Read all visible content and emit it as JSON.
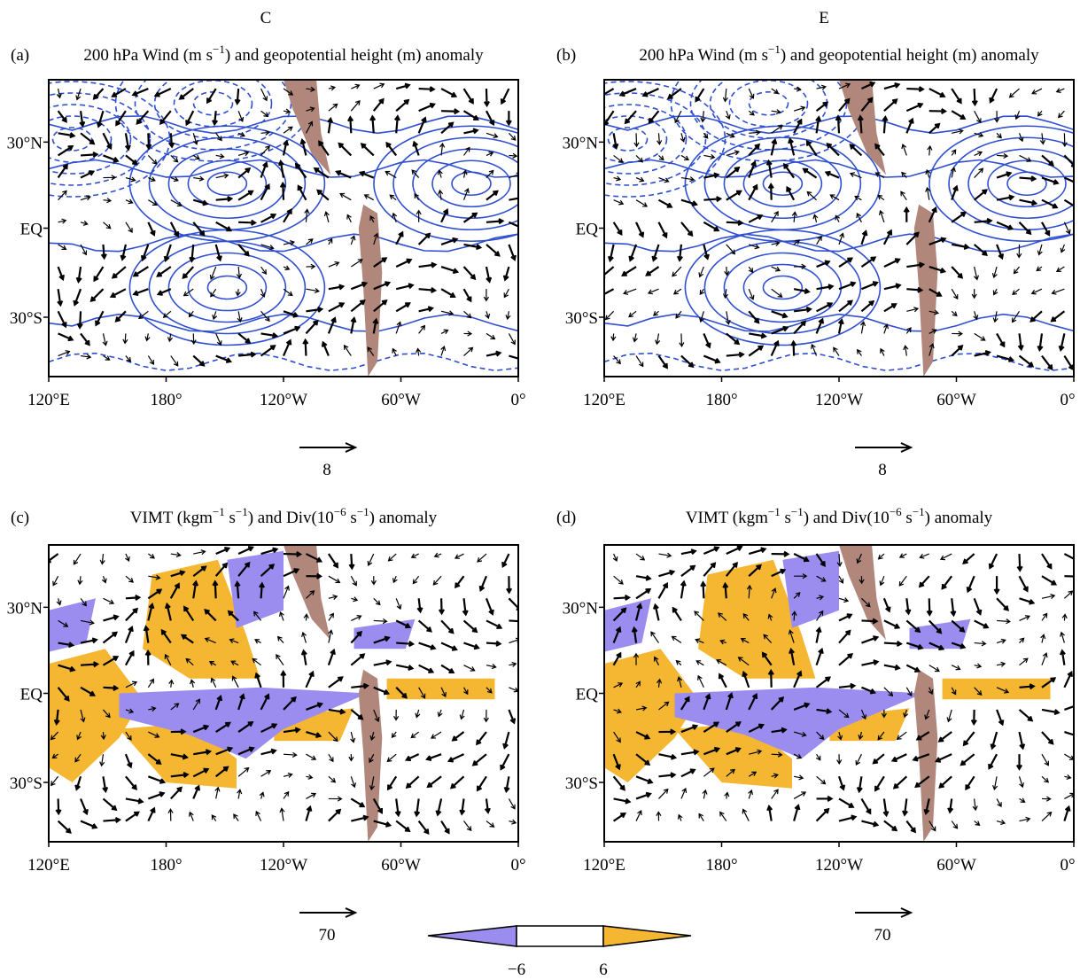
{
  "column_titles": [
    "C",
    "E"
  ],
  "panels": [
    {
      "label": "(a)",
      "title": [
        "200 hPa Wind (m s",
        "−1",
        ") and geopotential height (m) anomaly"
      ],
      "y_ticks": [
        "30°N",
        "EQ",
        "30°S"
      ],
      "x_ticks": [
        "120°E",
        "180°",
        "120°W",
        "60°W",
        "0°"
      ],
      "reference_vector": "8"
    },
    {
      "label": "(b)",
      "title": [
        "200 hPa Wind (m s",
        "−1",
        ") and geopotential height (m) anomaly"
      ],
      "y_ticks": [
        "30°N",
        "EQ",
        "30°S"
      ],
      "x_ticks": [
        "120°E",
        "180°",
        "120°W",
        "60°W",
        "0°"
      ],
      "reference_vector": "8"
    },
    {
      "label": "(c)",
      "title": [
        "VIMT (kgm",
        "−1",
        " s",
        "−1",
        ") and Div(10",
        "−6",
        " s",
        "−1",
        ") anomaly"
      ],
      "y_ticks": [
        "30°N",
        "EQ",
        "30°S"
      ],
      "x_ticks": [
        "120°E",
        "180°",
        "120°W",
        "60°W",
        "0°"
      ],
      "reference_vector": "70"
    },
    {
      "label": "(d)",
      "title": [
        "VIMT (kgm",
        "−1",
        " s",
        "−1",
        ") and Div(10",
        "−6",
        " s",
        "−1",
        ") anomaly"
      ],
      "y_ticks": [
        "30°N",
        "EQ",
        "30°S"
      ],
      "x_ticks": [
        "120°E",
        "180°",
        "120°W",
        "60°W",
        "0°"
      ],
      "reference_vector": "70"
    }
  ],
  "colorbar": {
    "labels": [
      "−6",
      "6"
    ]
  }
}
